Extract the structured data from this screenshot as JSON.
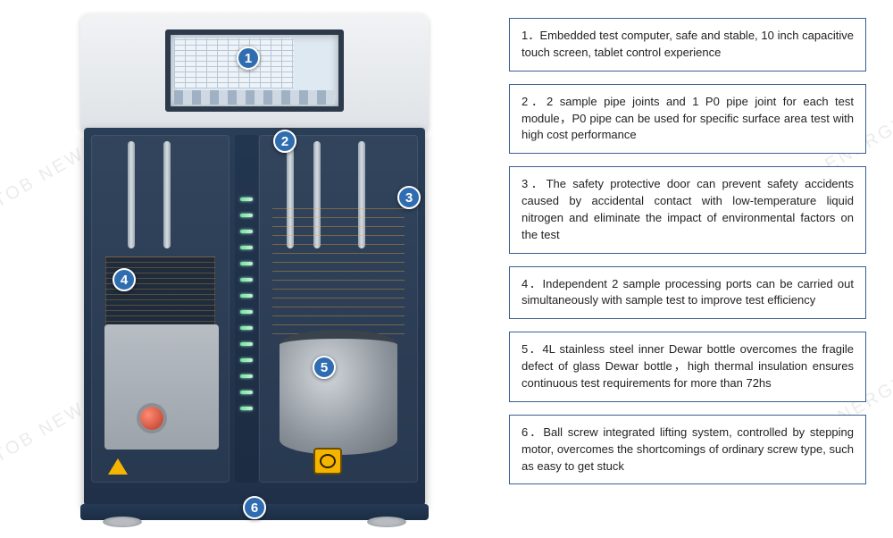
{
  "watermark": "TOB NEW ENERGY",
  "callouts": {
    "1": "1",
    "2": "2",
    "3": "3",
    "4": "4",
    "5": "5",
    "6": "6"
  },
  "features": [
    {
      "num": "1．",
      "text": "Embedded test computer, safe and stable, 10 inch capacitive touch screen, tablet control experience"
    },
    {
      "num": "2．",
      "text": "2 sample pipe joints and 1 P0 pipe joint for each test module，P0 pipe can be used for specific surface area test with high cost performance"
    },
    {
      "num": "3．",
      "text": "The safety protective door can prevent safety accidents caused by accidental contact with low-temperature liquid nitrogen and eliminate the impact of environmental factors on the test"
    },
    {
      "num": "4．",
      "text": "Independent 2 sample processing ports can be carried out simultaneously with sample test to improve test efficiency"
    },
    {
      "num": "5．",
      "text": "4L stainless steel inner Dewar bottle overcomes the fragile defect of glass Dewar bottle，high thermal insulation ensures continuous test requirements for more than 72hs"
    },
    {
      "num": "6．",
      "text": "Ball screw integrated lifting system, controlled by stepping motor, overcomes the shortcomings of ordinary screw type, such as easy to get stuck"
    }
  ],
  "colors": {
    "badge_bg": "#2f6db0",
    "box_border": "#3b5f8f",
    "body_dark": "#1f3048",
    "hood_light": "#e8ebee"
  }
}
